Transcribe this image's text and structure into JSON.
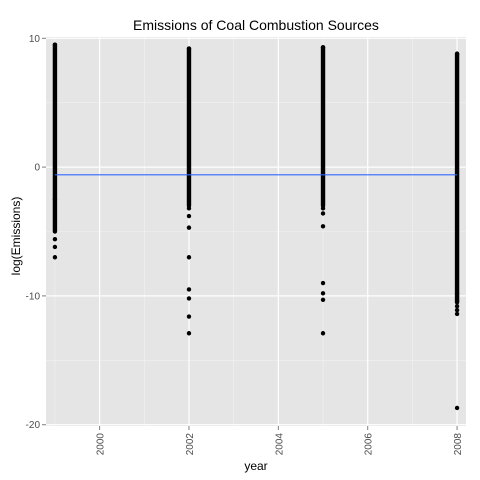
{
  "chart_data": {
    "type": "scatter",
    "title": "Emissions of Coal Combustion Sources",
    "xlabel": "year",
    "ylabel": "log(Emissions)",
    "xlim": [
      1998.8,
      2008.2
    ],
    "ylim": [
      -20.1,
      10.1
    ],
    "x_ticks": [
      2000,
      2002,
      2004,
      2006,
      2008
    ],
    "x_tick_labels": [
      "2000",
      "2002",
      "2004",
      "2006",
      "2008"
    ],
    "y_ticks": [
      -20,
      -10,
      0,
      10
    ],
    "y_tick_labels": [
      "-20",
      "-10",
      "0",
      "10"
    ],
    "grid": true,
    "legend": "none",
    "colors": {
      "panel": "#e5e5e5",
      "grid": "#ffffff",
      "points": "#000000",
      "trend": "#3366ff"
    },
    "series": [
      {
        "x": [
          1999,
          1999,
          1999,
          1999,
          1999
        ],
        "y": [
          9.5,
          -2.5,
          -5.6,
          -6.2,
          -7.0
        ],
        "range": [
          -5.0,
          9.5
        ]
      },
      {
        "x": [
          2002,
          2002,
          2002,
          2002,
          2002,
          2002,
          2002,
          2002,
          2002
        ],
        "y": [
          9.2,
          -3.2,
          -3.8,
          -4.7,
          -9.5,
          -10.2,
          -11.6,
          -12.9,
          -7.0
        ],
        "range": [
          -3.0,
          9.2
        ]
      },
      {
        "x": [
          2005,
          2005,
          2005,
          2005,
          2005,
          2005,
          2005,
          2005
        ],
        "y": [
          9.3,
          -3.2,
          -3.6,
          -4.6,
          -9.0,
          -9.8,
          -10.3,
          -12.9
        ],
        "range": [
          -3.0,
          9.3
        ]
      },
      {
        "x": [
          2008,
          2008,
          2008,
          2008,
          2008,
          2008,
          2008
        ],
        "y": [
          8.8,
          -10.4,
          -10.8,
          -11.1,
          -11.4,
          -18.7,
          -9.8
        ],
        "range": [
          -10.5,
          8.8
        ]
      }
    ],
    "trend_line": {
      "x": [
        1999,
        2008
      ],
      "y": [
        -0.6,
        -0.6
      ]
    }
  }
}
